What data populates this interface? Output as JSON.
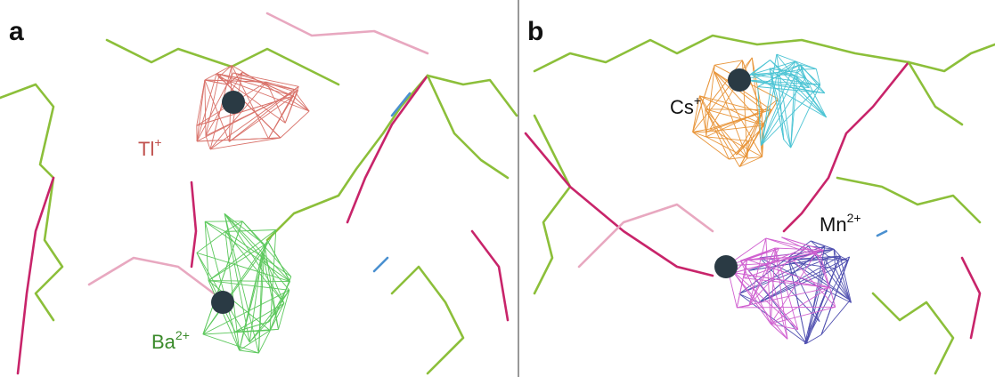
{
  "panels": [
    {
      "label": "a",
      "ions": [
        {
          "symbol": "Tl",
          "charge": "+"
        },
        {
          "symbol": "Ba",
          "charge": "2+"
        }
      ]
    },
    {
      "label": "b",
      "ions": [
        {
          "symbol": "Cs",
          "charge": "+"
        },
        {
          "symbol": "Mn",
          "charge": "2+"
        }
      ]
    }
  ]
}
